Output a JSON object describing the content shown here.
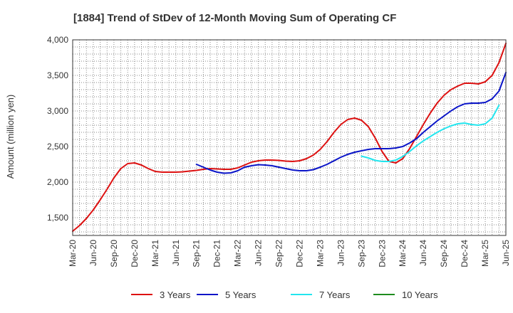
{
  "chart_data": {
    "type": "line",
    "title": "[1884]  Trend of StDev of 12-Month Moving Sum of Operating CF",
    "xlabel": "",
    "ylabel": "Amount (million yen)",
    "ylim": [
      1250,
      4000
    ],
    "yticks": [
      1500,
      2000,
      2500,
      3000,
      3500,
      4000
    ],
    "ytick_labels": [
      "1,500",
      "2,000",
      "2,500",
      "3,000",
      "3,500",
      "4,000"
    ],
    "xtick_labels": [
      "Mar-20",
      "Jun-20",
      "Sep-20",
      "Dec-20",
      "Mar-21",
      "Jun-21",
      "Sep-21",
      "Dec-21",
      "Mar-22",
      "Jun-22",
      "Sep-22",
      "Dec-22",
      "Mar-23",
      "Jun-23",
      "Sep-23",
      "Dec-23",
      "Mar-24",
      "Jun-24",
      "Sep-24",
      "Dec-24",
      "Mar-25",
      "Jun-25"
    ],
    "grid": true,
    "legend_position": "bottom",
    "series": [
      {
        "name": "3 Years",
        "color": "#dd1111",
        "start_month_index": 0,
        "values": [
          1310,
          1390,
          1490,
          1610,
          1750,
          1900,
          2060,
          2190,
          2260,
          2270,
          2240,
          2190,
          2150,
          2140,
          2140,
          2140,
          2145,
          2155,
          2165,
          2180,
          2190,
          2185,
          2180,
          2180,
          2200,
          2240,
          2280,
          2300,
          2310,
          2310,
          2305,
          2295,
          2290,
          2300,
          2330,
          2380,
          2460,
          2570,
          2700,
          2810,
          2880,
          2900,
          2870,
          2780,
          2620,
          2430,
          2290,
          2270,
          2330,
          2470,
          2640,
          2810,
          2970,
          3110,
          3220,
          3300,
          3350,
          3390,
          3390,
          3380,
          3410,
          3500,
          3680,
          3950
        ]
      },
      {
        "name": "5 Years",
        "color": "#0a14c8",
        "start_month_index": 18,
        "values": [
          2250,
          2210,
          2170,
          2140,
          2125,
          2130,
          2160,
          2210,
          2230,
          2245,
          2240,
          2230,
          2210,
          2190,
          2170,
          2160,
          2160,
          2175,
          2210,
          2250,
          2300,
          2350,
          2390,
          2420,
          2440,
          2460,
          2470,
          2470,
          2470,
          2480,
          2500,
          2550,
          2610,
          2700,
          2780,
          2860,
          2930,
          3000,
          3060,
          3100,
          3110,
          3110,
          3120,
          3170,
          3280,
          3540
        ]
      },
      {
        "name": "7 Years",
        "color": "#22e5ee",
        "start_month_index": 42,
        "values": [
          2365,
          2340,
          2305,
          2290,
          2290,
          2310,
          2360,
          2430,
          2510,
          2580,
          2640,
          2700,
          2750,
          2790,
          2820,
          2830,
          2810,
          2800,
          2820,
          2900,
          3080
        ]
      },
      {
        "name": "10 Years",
        "color": "#1e8c1e",
        "start_month_index": 0,
        "values": []
      }
    ]
  }
}
